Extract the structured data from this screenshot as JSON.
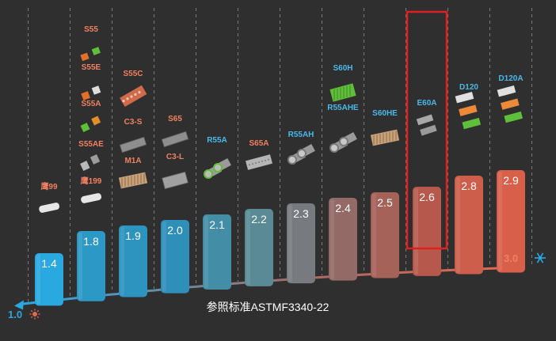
{
  "chart_data": {
    "type": "bar",
    "title": "",
    "xlabel": "",
    "ylabel": "",
    "standard_note": "参照标准ASTMF3340-22",
    "axis_start_label": "1.0",
    "axis_end_label": "3.0",
    "axis_start_icon": "sun-icon",
    "axis_end_icon": "snowflake-icon",
    "ylim": [
      1.0,
      3.0
    ],
    "grid": "vertical dashed lines",
    "highlighted_category": "E60A",
    "highlight_color": "#e02020",
    "warm_label_color": "#f08060",
    "cool_label_color": "#4ab8e8",
    "bars": [
      {
        "value": "1.4",
        "labels": [
          {
            "text": "鹰99",
            "tone": "warm"
          }
        ],
        "products": [
          "white-pad"
        ]
      },
      {
        "value": "1.8",
        "labels": [
          {
            "text": "S55",
            "tone": "warm"
          },
          {
            "text": "S55E",
            "tone": "warm"
          },
          {
            "text": "S55A",
            "tone": "warm"
          },
          {
            "text": "S55AE",
            "tone": "warm"
          },
          {
            "text": "鹰199",
            "tone": "warm"
          }
        ],
        "products": [
          "orange-green-blocks",
          "orange-white-blocks",
          "green-orange-blocks",
          "grey-blocks",
          "white-pad"
        ]
      },
      {
        "value": "1.9",
        "labels": [
          {
            "text": "S55C",
            "tone": "warm"
          },
          {
            "text": "C3-S",
            "tone": "warm"
          },
          {
            "text": "M1A",
            "tone": "warm"
          }
        ],
        "products": [
          "honeycomb-orange-block",
          "grey-bar",
          "honeycomb-beige-block"
        ]
      },
      {
        "value": "2.0",
        "labels": [
          {
            "text": "S65",
            "tone": "warm"
          },
          {
            "text": "C3-L",
            "tone": "warm"
          }
        ],
        "products": [
          "grey-bar",
          "grey-block"
        ]
      },
      {
        "value": "2.1",
        "labels": [
          {
            "text": "R55A",
            "tone": "cool"
          }
        ],
        "products": [
          "green-ring-tubes"
        ]
      },
      {
        "value": "2.2",
        "labels": [
          {
            "text": "S65A",
            "tone": "warm"
          }
        ],
        "products": [
          "grey-mesh-block"
        ]
      },
      {
        "value": "2.3",
        "labels": [
          {
            "text": "R55AH",
            "tone": "cool"
          }
        ],
        "products": [
          "grey-ring-tubes"
        ]
      },
      {
        "value": "2.4",
        "labels": [
          {
            "text": "S60H",
            "tone": "cool"
          },
          {
            "text": "R55AHE",
            "tone": "cool"
          }
        ],
        "products": [
          "green-block",
          "grey-ring-tubes"
        ]
      },
      {
        "value": "2.5",
        "labels": [
          {
            "text": "S60HE",
            "tone": "cool"
          }
        ],
        "products": [
          "honeycomb-beige-block"
        ]
      },
      {
        "value": "2.6",
        "labels": [
          {
            "text": "E60A",
            "tone": "cool"
          }
        ],
        "products": [
          "grey-small-blocks"
        ]
      },
      {
        "value": "2.8",
        "labels": [
          {
            "text": "D120",
            "tone": "cool"
          }
        ],
        "products": [
          "white-orange-green-stack"
        ]
      },
      {
        "value": "2.9",
        "labels": [
          {
            "text": "D120A",
            "tone": "cool"
          }
        ],
        "products": [
          "white-orange-green-stack"
        ]
      }
    ]
  }
}
